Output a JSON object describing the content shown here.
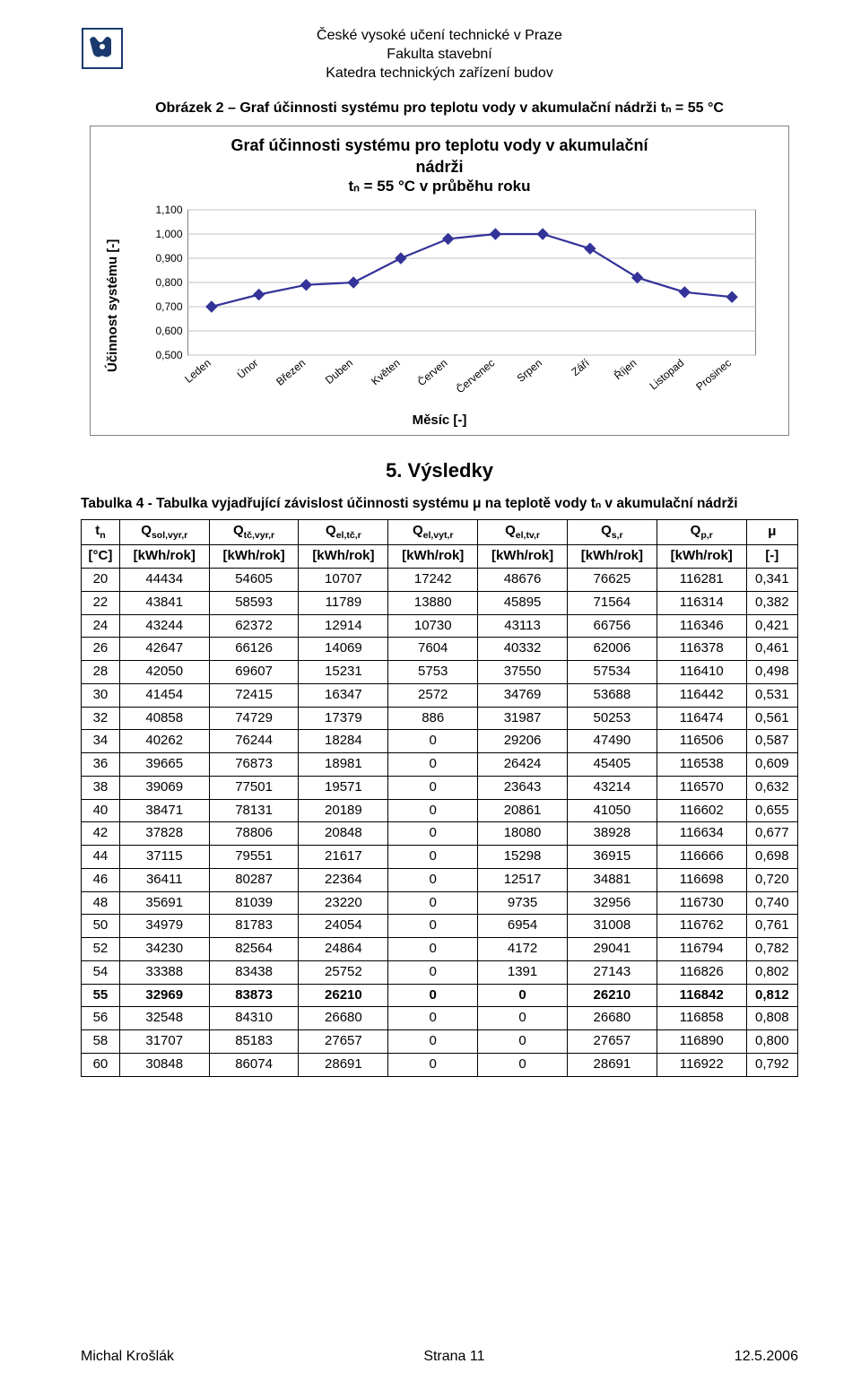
{
  "header": {
    "line1": "České vysoké učení technické v Praze",
    "line2": "Fakulta stavební",
    "line3": "Katedra technických zařízení budov"
  },
  "figure": {
    "caption": "Obrázek 2 – Graf účinnosti systému pro teplotu vody v akumulační nádrži tₙ = 55 °C",
    "title_line1": "Graf účinnosti systému pro teplotu vody v akumulační",
    "title_line2": "nádrži",
    "title_line3": "tₙ = 55 °C  v průběhu roku",
    "ylabel": "Účinnost systému [-]",
    "xlabel": "Měsíc [-]"
  },
  "chart": {
    "type": "line",
    "background_color": "#ffffff",
    "plot_bg": "#ffffff",
    "grid_color": "#c0c0c0",
    "border_color": "#808080",
    "line_color": "#333399",
    "marker_fill": "#333399",
    "marker_size": 6,
    "line_width": 2.2,
    "ylim": [
      0.5,
      1.1
    ],
    "ytick_step": 0.1,
    "ytick_labels": [
      "0,500",
      "0,600",
      "0,700",
      "0,800",
      "0,900",
      "1,000",
      "1,100"
    ],
    "categories": [
      "Leden",
      "Únor",
      "Březen",
      "Duben",
      "Květen",
      "Červen",
      "Červenec",
      "Srpen",
      "Září",
      "Říjen",
      "Listopad",
      "Prosinec"
    ],
    "values": [
      0.7,
      0.75,
      0.79,
      0.8,
      0.9,
      0.98,
      1.0,
      1.0,
      0.94,
      0.82,
      0.76,
      0.74
    ]
  },
  "section_title": "5. Výsledky",
  "table": {
    "caption": "Tabulka 4 - Tabulka vyjadřující závislost účinnosti systému μ na teplotě vody tₙ v akumulační nádrži",
    "header_row1": [
      "tₙ",
      "Q_sol,vyr,r",
      "Q_tč,vyr,r",
      "Q_el,tč,r",
      "Q_el,vyt,r",
      "Q_el,tv,r",
      "Q_s,r",
      "Q_p,r",
      "μ"
    ],
    "header_row2": [
      "[°C]",
      "[kWh/rok]",
      "[kWh/rok]",
      "[kWh/rok]",
      "[kWh/rok]",
      "[kWh/rok]",
      "[kWh/rok]",
      "[kWh/rok]",
      "[-]"
    ],
    "bold_row_index": 20,
    "rows": [
      [
        "20",
        "44434",
        "54605",
        "10707",
        "17242",
        "48676",
        "76625",
        "116281",
        "0,341"
      ],
      [
        "22",
        "43841",
        "58593",
        "11789",
        "13880",
        "45895",
        "71564",
        "116314",
        "0,382"
      ],
      [
        "24",
        "43244",
        "62372",
        "12914",
        "10730",
        "43113",
        "66756",
        "116346",
        "0,421"
      ],
      [
        "26",
        "42647",
        "66126",
        "14069",
        "7604",
        "40332",
        "62006",
        "116378",
        "0,461"
      ],
      [
        "28",
        "42050",
        "69607",
        "15231",
        "5753",
        "37550",
        "57534",
        "116410",
        "0,498"
      ],
      [
        "30",
        "41454",
        "72415",
        "16347",
        "2572",
        "34769",
        "53688",
        "116442",
        "0,531"
      ],
      [
        "32",
        "40858",
        "74729",
        "17379",
        "886",
        "31987",
        "50253",
        "116474",
        "0,561"
      ],
      [
        "34",
        "40262",
        "76244",
        "18284",
        "0",
        "29206",
        "47490",
        "116506",
        "0,587"
      ],
      [
        "36",
        "39665",
        "76873",
        "18981",
        "0",
        "26424",
        "45405",
        "116538",
        "0,609"
      ],
      [
        "38",
        "39069",
        "77501",
        "19571",
        "0",
        "23643",
        "43214",
        "116570",
        "0,632"
      ],
      [
        "40",
        "38471",
        "78131",
        "20189",
        "0",
        "20861",
        "41050",
        "116602",
        "0,655"
      ],
      [
        "42",
        "37828",
        "78806",
        "20848",
        "0",
        "18080",
        "38928",
        "116634",
        "0,677"
      ],
      [
        "44",
        "37115",
        "79551",
        "21617",
        "0",
        "15298",
        "36915",
        "116666",
        "0,698"
      ],
      [
        "46",
        "36411",
        "80287",
        "22364",
        "0",
        "12517",
        "34881",
        "116698",
        "0,720"
      ],
      [
        "48",
        "35691",
        "81039",
        "23220",
        "0",
        "9735",
        "32956",
        "116730",
        "0,740"
      ],
      [
        "50",
        "34979",
        "81783",
        "24054",
        "0",
        "6954",
        "31008",
        "116762",
        "0,761"
      ],
      [
        "52",
        "34230",
        "82564",
        "24864",
        "0",
        "4172",
        "29041",
        "116794",
        "0,782"
      ],
      [
        "54",
        "33388",
        "83438",
        "25752",
        "0",
        "1391",
        "27143",
        "116826",
        "0,802"
      ],
      [
        "55",
        "32969",
        "83873",
        "26210",
        "0",
        "0",
        "26210",
        "116842",
        "0,812"
      ],
      [
        "56",
        "32548",
        "84310",
        "26680",
        "0",
        "0",
        "26680",
        "116858",
        "0,808"
      ],
      [
        "58",
        "31707",
        "85183",
        "27657",
        "0",
        "0",
        "27657",
        "116890",
        "0,800"
      ],
      [
        "60",
        "30848",
        "86074",
        "28691",
        "0",
        "0",
        "28691",
        "116922",
        "0,792"
      ]
    ]
  },
  "footer": {
    "author": "Michal Krošlák",
    "page": "Strana 11",
    "date": "12.5.2006"
  }
}
